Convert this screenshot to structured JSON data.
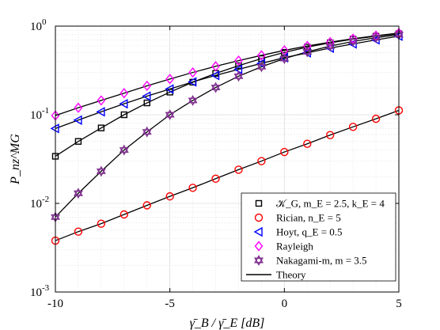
{
  "chart_data": {
    "type": "line",
    "xlabel": "γ̄_B / γ̄_E [dB]",
    "ylabel": "P_nz^MG",
    "x_axis": {
      "range": [
        -10,
        5
      ],
      "ticks": [
        -10,
        -5,
        0,
        5
      ],
      "tick_labels": [
        "-10",
        "-5",
        "0",
        "5"
      ]
    },
    "y_axis": {
      "scale": "log",
      "range": [
        0.001,
        1
      ],
      "ticks": [
        0.001,
        0.01,
        0.1,
        1
      ],
      "tick_labels": [
        {
          "base": "10",
          "exp": "-3"
        },
        {
          "base": "10",
          "exp": "-2"
        },
        {
          "base": "10",
          "exp": "-1"
        },
        {
          "base": "10",
          "exp": "0"
        }
      ]
    },
    "grid": true,
    "legend_position": "bottom-right",
    "x": [
      -10,
      -9,
      -8,
      -7,
      -6,
      -5,
      -4,
      -3,
      -2,
      -1,
      0,
      1,
      2,
      3,
      4,
      5
    ],
    "series": [
      {
        "name": "𝒦_G, m_E = 2.5, k_E = 4",
        "marker": "square",
        "color": "#000000",
        "values": [
          0.034,
          0.05,
          0.071,
          0.1,
          0.136,
          0.18,
          0.233,
          0.293,
          0.358,
          0.43,
          0.505,
          0.58,
          0.648,
          0.712,
          0.77,
          0.82
        ]
      },
      {
        "name": "Rician, n_E = 5",
        "marker": "circle",
        "color": "#ff0000",
        "values": [
          0.0038,
          0.0048,
          0.0059,
          0.0075,
          0.0095,
          0.012,
          0.015,
          0.019,
          0.024,
          0.03,
          0.038,
          0.047,
          0.059,
          0.073,
          0.09,
          0.112
        ]
      },
      {
        "name": "Hoyt, q_E = 0.5",
        "marker": "triangle-left",
        "color": "#0000ff",
        "values": [
          0.07,
          0.087,
          0.108,
          0.133,
          0.162,
          0.195,
          0.235,
          0.278,
          0.325,
          0.38,
          0.44,
          0.5,
          0.565,
          0.63,
          0.7,
          0.77
        ]
      },
      {
        "name": "Rayleigh",
        "marker": "diamond",
        "color": "#ff00ff",
        "values": [
          0.098,
          0.12,
          0.145,
          0.175,
          0.212,
          0.253,
          0.3,
          0.352,
          0.408,
          0.468,
          0.532,
          0.597,
          0.66,
          0.722,
          0.78,
          0.835
        ]
      },
      {
        "name": "Nakagami-m, m = 3.5",
        "marker": "hexagram",
        "color": "#7e2f8e",
        "values": [
          0.007,
          0.013,
          0.023,
          0.04,
          0.064,
          0.1,
          0.145,
          0.203,
          0.272,
          0.348,
          0.43,
          0.513,
          0.595,
          0.672,
          0.74,
          0.8
        ]
      }
    ],
    "theory_label": "Theory",
    "theory_color": "#000000"
  }
}
